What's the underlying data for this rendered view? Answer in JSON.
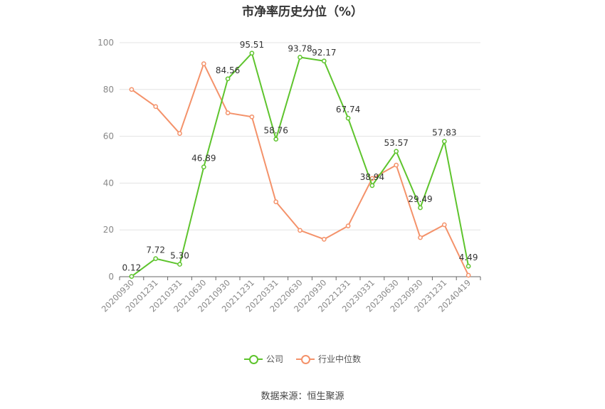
{
  "chart_data": {
    "type": "line",
    "title": "市净率历史分位（%）",
    "x": [
      "20200930",
      "20201231",
      "20210331",
      "20210630",
      "20210930",
      "20211231",
      "20220331",
      "20220630",
      "20220930",
      "20221231",
      "20230331",
      "20230630",
      "20230930",
      "20231231",
      "20240419"
    ],
    "series": [
      {
        "name": "公司",
        "color": "#5ec42d",
        "values": [
          0.12,
          7.72,
          5.3,
          46.89,
          84.56,
          95.51,
          58.76,
          93.78,
          92.17,
          67.74,
          38.94,
          53.57,
          29.49,
          57.83,
          4.49
        ],
        "labels": [
          "0.12",
          "7.72",
          "5.30",
          "46.89",
          "84.56",
          "95.51",
          "58.76",
          "93.78",
          "92.17",
          "67.74",
          "38.94",
          "53.57",
          "29.49",
          "57.83",
          "4.49"
        ]
      },
      {
        "name": "行业中位数",
        "color": "#f4926a",
        "values": [
          80,
          72.7,
          61.2,
          91,
          70,
          68.3,
          32,
          19.8,
          16,
          21.7,
          42,
          47.7,
          16.7,
          22.2,
          0.6
        ]
      }
    ],
    "ylim": [
      0,
      100
    ],
    "yticks": [
      0,
      20,
      40,
      60,
      80,
      100
    ],
    "xlabel": "",
    "ylabel": "",
    "grid": true,
    "legend_position": "bottom"
  },
  "source": "数据来源：恒生聚源"
}
